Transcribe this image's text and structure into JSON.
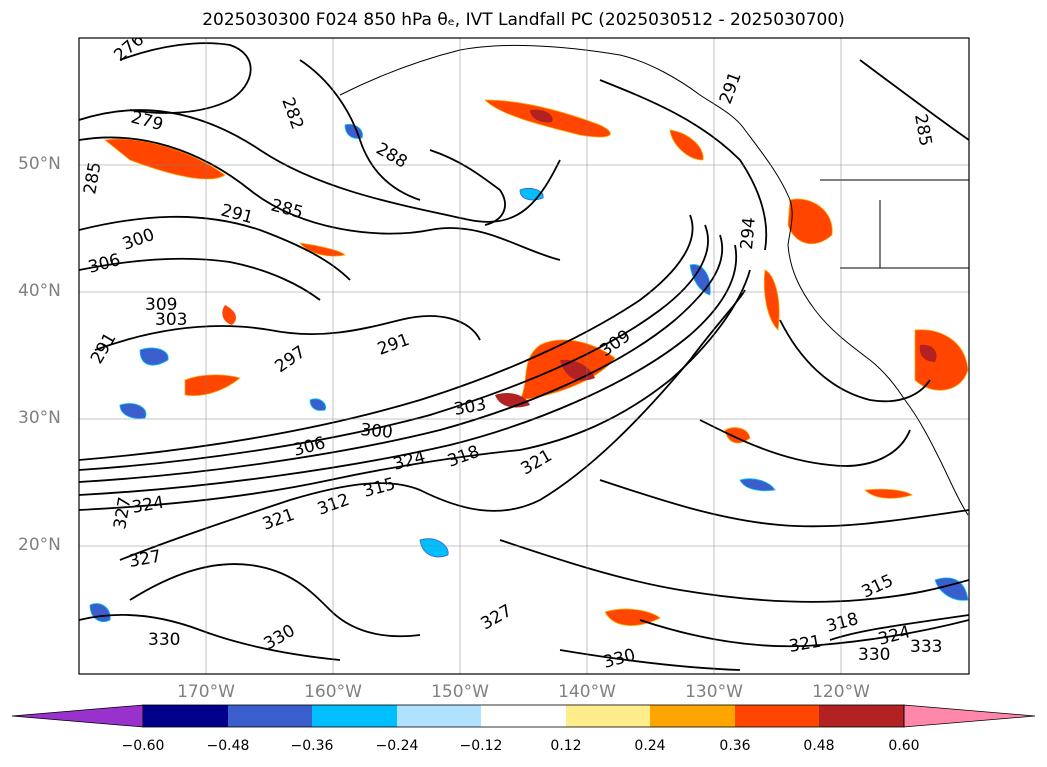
{
  "title": "2025030300 F024 850 hPa θₑ, IVT Landfall PC (2025030512 - 2025030700)",
  "lat_labels": [
    "50°N",
    "40°N",
    "30°N",
    "20°N"
  ],
  "lon_labels": [
    "170°W",
    "160°W",
    "150°W",
    "140°W",
    "130°W",
    "120°W"
  ],
  "contour_labels": [
    "276",
    "279",
    "282",
    "285",
    "285",
    "285",
    "288",
    "291",
    "291",
    "291",
    "291",
    "294",
    "297",
    "300",
    "300",
    "303",
    "303",
    "306",
    "306",
    "309",
    "309",
    "312",
    "315",
    "315",
    "318",
    "318",
    "321",
    "321",
    "321",
    "324",
    "324",
    "324",
    "327",
    "327",
    "327",
    "330",
    "330",
    "330",
    "330",
    "333"
  ],
  "colorbar": {
    "ticks": [
      "−0.60",
      "−0.48",
      "−0.36",
      "−0.24",
      "−0.12",
      "0.12",
      "0.24",
      "0.36",
      "0.48",
      "0.60"
    ],
    "colors": [
      "#9932cc",
      "#00008b",
      "#3a5fcd",
      "#00bfff",
      "#b0e2ff",
      "#ffffff",
      "#ffec8b",
      "#ffa500",
      "#ff4500",
      "#b22222",
      "#ff88aa"
    ]
  }
}
